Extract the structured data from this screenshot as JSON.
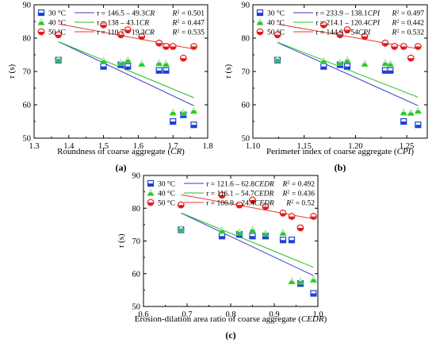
{
  "colors": {
    "s30": "#1f3fd6",
    "s40": "#22cc22",
    "s50": "#e21c1c",
    "fit30": "#3b3bd0",
    "fit40": "#22c022",
    "fit50": "#e23a3a"
  },
  "chart_data": [
    {
      "type": "scatter",
      "panel_label": "(a)",
      "xlabel": "Roundness of coarse aggregate (CR)",
      "ylabel": "τ (s)",
      "xlim": [
        1.3,
        1.8
      ],
      "ylim": [
        50,
        90
      ],
      "xticks": [
        "1.3",
        "1.4",
        "1.5",
        "1.6",
        "1.7",
        "1.8"
      ],
      "yticks": [
        "50",
        "60",
        "70",
        "80",
        "90"
      ],
      "legend_position": "top",
      "series": [
        {
          "name": "30 °C",
          "marker": "square",
          "color_key": "s30",
          "fit": "τ = 146.5 – 49.3CR",
          "r2": "R² = 0.501",
          "fit_coef": [
            146.5,
            -49.3
          ],
          "fit_range": [
            1.37,
            1.76
          ],
          "x": [
            1.37,
            1.5,
            1.55,
            1.57,
            1.66,
            1.68,
            1.7,
            1.73,
            1.76
          ],
          "y": [
            73.4,
            71.5,
            72.0,
            71.5,
            70.3,
            70.3,
            55.0,
            57.0,
            54.0
          ]
        },
        {
          "name": "40 °C",
          "marker": "triangle",
          "color_key": "s40",
          "fit": "τ = 138 – 43.1CR",
          "r2": "R² = 0.447",
          "fit_coef": [
            138,
            -43.1
          ],
          "fit_range": [
            1.37,
            1.76
          ],
          "x": [
            1.37,
            1.5,
            1.55,
            1.57,
            1.61,
            1.66,
            1.68,
            1.7,
            1.73,
            1.76
          ],
          "y": [
            73.6,
            73.2,
            72.6,
            73.4,
            72.3,
            72.5,
            72.3,
            57.7,
            57.6,
            58.2
          ]
        },
        {
          "name": "50 °C",
          "marker": "circle",
          "color_key": "s50",
          "fit": "τ = 110.7 – 19.3CR",
          "r2": "R² = 0.535",
          "fit_coef": [
            110.7,
            -19.3
          ],
          "fit_range": [
            1.37,
            1.76
          ],
          "x": [
            1.37,
            1.5,
            1.55,
            1.57,
            1.61,
            1.66,
            1.68,
            1.7,
            1.73,
            1.76
          ],
          "y": [
            81.0,
            84.0,
            81.0,
            82.5,
            80.5,
            78.5,
            77.5,
            77.5,
            74.0,
            77.5
          ]
        }
      ]
    },
    {
      "type": "scatter",
      "panel_label": "(b)",
      "xlabel": "Perimeter index of coarse aggregate (CPI)",
      "ylabel": "τ (s)",
      "xlim": [
        1.1,
        1.27
      ],
      "ylim": [
        50,
        90
      ],
      "xticks": [
        "1.10",
        "1.15",
        "1.20",
        "1.25"
      ],
      "yticks": [
        "50",
        "60",
        "70",
        "80",
        "90"
      ],
      "legend_position": "top",
      "series": [
        {
          "name": "30 °C",
          "marker": "square",
          "color_key": "s30",
          "fit": "τ = 233.9 – 138.1CPI",
          "r2": "R² = 0.497",
          "fit_coef": [
            233.9,
            -138.1
          ],
          "fit_range": [
            1.124,
            1.261
          ],
          "x": [
            1.124,
            1.169,
            1.185,
            1.192,
            1.229,
            1.234,
            1.247,
            1.261
          ],
          "y": [
            73.4,
            71.5,
            72.0,
            71.5,
            70.3,
            70.3,
            55.0,
            54.0
          ]
        },
        {
          "name": "40 °C",
          "marker": "triangle",
          "color_key": "s40",
          "fit": "τ = 214.1 – 120.4CPI",
          "r2": "R² = 0.442",
          "fit_coef": [
            214.1,
            -120.4
          ],
          "fit_range": [
            1.124,
            1.261
          ],
          "x": [
            1.124,
            1.169,
            1.185,
            1.192,
            1.209,
            1.229,
            1.234,
            1.247,
            1.254,
            1.261
          ],
          "y": [
            73.6,
            73.2,
            72.6,
            73.4,
            72.3,
            72.5,
            72.3,
            57.7,
            57.6,
            58.2
          ]
        },
        {
          "name": "50 °C",
          "marker": "circle",
          "color_key": "s50",
          "fit": "τ = 144.9 – 54CPI",
          "r2": "R² = 0.532",
          "fit_coef": [
            144.9,
            -54
          ],
          "fit_range": [
            1.124,
            1.261
          ],
          "x": [
            1.124,
            1.169,
            1.185,
            1.192,
            1.209,
            1.229,
            1.238,
            1.247,
            1.254,
            1.261
          ],
          "y": [
            81.0,
            84.0,
            81.0,
            82.5,
            80.5,
            78.5,
            77.5,
            77.5,
            74.0,
            77.5
          ]
        }
      ]
    },
    {
      "type": "scatter",
      "panel_label": "(c)",
      "xlabel": "Erosion-dilation area ratio of coarse aggregate (CEDR)",
      "ylabel": "τ (s)",
      "xlim": [
        0.6,
        1.0
      ],
      "ylim": [
        50,
        90
      ],
      "xticks": [
        "0.6",
        "0.7",
        "0.8",
        "0.9",
        "1.0"
      ],
      "yticks": [
        "50",
        "60",
        "70",
        "80",
        "90"
      ],
      "legend_position": "top",
      "series": [
        {
          "name": "30 °C",
          "marker": "square",
          "color_key": "s30",
          "fit": "τ = 121.6 – 62.8CEDR",
          "r2": "R² = 0.492",
          "fit_coef": [
            121.6,
            -62.8
          ],
          "fit_range": [
            0.686,
            0.99
          ],
          "x": [
            0.686,
            0.78,
            0.82,
            0.85,
            0.88,
            0.92,
            0.94,
            0.96,
            0.99
          ],
          "y": [
            73.4,
            71.5,
            72.0,
            71.5,
            71.5,
            70.3,
            70.3,
            57.0,
            54.0
          ]
        },
        {
          "name": "40 °C",
          "marker": "triangle",
          "color_key": "s40",
          "fit": "τ = 116.1 – 54.7CEDR",
          "r2": "R² = 0.436",
          "fit_coef": [
            116.1,
            -54.7
          ],
          "fit_range": [
            0.686,
            0.99
          ],
          "x": [
            0.686,
            0.78,
            0.82,
            0.85,
            0.88,
            0.92,
            0.94,
            0.96,
            0.99
          ],
          "y": [
            73.6,
            73.2,
            72.6,
            73.4,
            72.3,
            72.5,
            57.7,
            57.6,
            58.2
          ]
        },
        {
          "name": "50 °C",
          "marker": "circle",
          "color_key": "s50",
          "fit": "τ = 100.9 – 24.4CEDR",
          "r2": "R² = 0.52",
          "fit_coef": [
            100.9,
            -24.4
          ],
          "fit_range": [
            0.686,
            0.99
          ],
          "x": [
            0.686,
            0.78,
            0.82,
            0.85,
            0.88,
            0.92,
            0.94,
            0.96,
            0.99
          ],
          "y": [
            81.0,
            84.0,
            81.0,
            82.5,
            80.5,
            78.5,
            77.5,
            74.0,
            77.5
          ]
        }
      ]
    }
  ]
}
